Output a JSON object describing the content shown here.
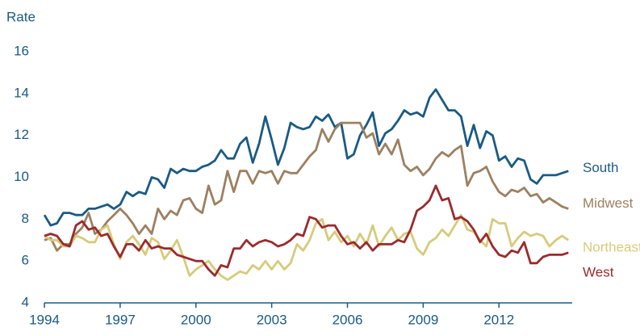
{
  "chart_data": {
    "type": "line",
    "y_label": "Rate",
    "x": [
      1994,
      1994.25,
      1994.5,
      1994.75,
      1995,
      1995.25,
      1995.5,
      1995.75,
      1996,
      1996.25,
      1996.5,
      1996.75,
      1997,
      1997.25,
      1997.5,
      1997.75,
      1998,
      1998.25,
      1998.5,
      1998.75,
      1999,
      1999.25,
      1999.5,
      1999.75,
      2000,
      2000.25,
      2000.5,
      2000.75,
      2001,
      2001.25,
      2001.5,
      2001.75,
      2002,
      2002.25,
      2002.5,
      2002.75,
      2003,
      2003.25,
      2003.5,
      2003.75,
      2004,
      2004.25,
      2004.5,
      2004.75,
      2005,
      2005.25,
      2005.5,
      2005.75,
      2006,
      2006.25,
      2006.5,
      2006.75,
      2007,
      2007.25,
      2007.5,
      2007.75,
      2008,
      2008.25,
      2008.5,
      2008.75,
      2009,
      2009.25,
      2009.5,
      2009.75,
      2010,
      2010.25,
      2010.5,
      2010.75,
      2011,
      2011.25,
      2011.5,
      2011.75,
      2012,
      2012.25,
      2012.5,
      2012.75,
      2013,
      2013.25,
      2013.5,
      2013.75,
      2014,
      2014.25,
      2014.5,
      2014.75
    ],
    "series": [
      {
        "name": "South",
        "color": "#1a5a84",
        "values": [
          8.2,
          7.7,
          7.8,
          8.3,
          8.3,
          8.2,
          8.2,
          8.5,
          8.5,
          8.6,
          8.7,
          8.5,
          8.7,
          9.3,
          9.1,
          9.3,
          9.2,
          10.0,
          9.9,
          9.5,
          10.4,
          10.2,
          10.4,
          10.3,
          10.3,
          10.5,
          10.6,
          10.8,
          11.3,
          10.9,
          10.9,
          11.6,
          11.9,
          10.7,
          11.6,
          12.9,
          11.8,
          10.6,
          11.4,
          12.6,
          12.4,
          12.3,
          12.4,
          12.9,
          12.7,
          13.0,
          12.4,
          12.6,
          10.9,
          11.1,
          12.0,
          12.5,
          13.1,
          11.5,
          12.1,
          12.3,
          12.7,
          13.2,
          13.0,
          13.1,
          12.9,
          13.8,
          14.2,
          13.7,
          13.2,
          13.2,
          12.9,
          11.5,
          12.5,
          11.4,
          12.2,
          12.0,
          10.8,
          11.0,
          10.5,
          10.9,
          10.8,
          9.9,
          9.7,
          10.1,
          10.1,
          10.1,
          10.2,
          10.3
        ]
      },
      {
        "name": "Midwest",
        "color": "#9c8060",
        "values": [
          7.0,
          7.1,
          6.5,
          6.8,
          6.8,
          7.3,
          7.6,
          8.3,
          7.3,
          7.5,
          7.9,
          8.2,
          8.5,
          8.2,
          7.8,
          7.3,
          7.7,
          7.3,
          8.5,
          8.0,
          8.4,
          8.2,
          8.9,
          9.0,
          8.5,
          8.3,
          9.6,
          8.7,
          8.9,
          10.3,
          9.3,
          10.3,
          10.3,
          9.7,
          10.3,
          10.2,
          10.3,
          9.7,
          10.3,
          10.2,
          10.2,
          10.6,
          11.0,
          11.3,
          12.3,
          11.7,
          12.3,
          12.6,
          12.6,
          12.6,
          12.6,
          11.9,
          12.1,
          11.1,
          11.6,
          11.1,
          11.8,
          10.6,
          10.3,
          10.5,
          10.1,
          10.4,
          10.9,
          11.2,
          11.0,
          11.3,
          11.5,
          9.6,
          10.2,
          10.3,
          10.5,
          9.8,
          9.3,
          9.1,
          9.4,
          9.3,
          9.5,
          9.1,
          9.2,
          8.8,
          9.0,
          8.8,
          8.6,
          8.5
        ]
      },
      {
        "name": "Northeast",
        "color": "#d6cb7a",
        "values": [
          7.2,
          7.0,
          7.0,
          6.7,
          6.7,
          7.2,
          7.1,
          6.9,
          6.9,
          7.5,
          7.7,
          6.8,
          6.1,
          6.9,
          7.2,
          6.8,
          6.3,
          7.1,
          6.9,
          6.1,
          6.5,
          7.0,
          6.2,
          5.3,
          5.6,
          5.8,
          6.0,
          5.6,
          5.3,
          5.1,
          5.3,
          5.5,
          5.4,
          5.8,
          5.6,
          6.0,
          5.6,
          6.0,
          5.6,
          5.9,
          6.8,
          6.5,
          7.0,
          7.8,
          8.0,
          7.0,
          7.4,
          6.9,
          7.2,
          6.7,
          7.3,
          6.8,
          7.7,
          6.7,
          7.2,
          7.6,
          7.0,
          7.3,
          7.4,
          6.6,
          6.3,
          6.9,
          7.1,
          7.5,
          7.2,
          7.7,
          8.2,
          7.5,
          7.4,
          7.0,
          6.7,
          8.0,
          7.8,
          7.8,
          6.7,
          7.1,
          7.4,
          7.2,
          7.3,
          7.2,
          6.7,
          7.0,
          7.2,
          7.0
        ]
      },
      {
        "name": "West",
        "color": "#9b2a2d",
        "values": [
          7.2,
          7.3,
          7.2,
          6.8,
          6.7,
          7.7,
          7.9,
          7.5,
          7.6,
          7.2,
          7.3,
          6.7,
          6.2,
          6.8,
          6.8,
          6.5,
          7.0,
          6.6,
          6.7,
          6.6,
          6.6,
          6.3,
          6.2,
          6.1,
          6.0,
          6.0,
          5.6,
          5.3,
          5.8,
          5.7,
          6.6,
          6.6,
          7.0,
          6.7,
          6.9,
          7.0,
          6.9,
          6.7,
          6.8,
          7.0,
          7.3,
          7.2,
          8.1,
          8.0,
          7.6,
          7.7,
          7.7,
          7.2,
          6.8,
          6.9,
          6.6,
          6.9,
          6.5,
          6.8,
          6.8,
          6.8,
          7.0,
          6.9,
          7.5,
          8.4,
          8.6,
          8.9,
          9.6,
          8.9,
          9.0,
          8.0,
          8.1,
          7.9,
          7.5,
          6.9,
          7.3,
          6.7,
          6.3,
          6.2,
          6.5,
          6.4,
          6.9,
          5.9,
          5.9,
          6.2,
          6.3,
          6.3,
          6.3,
          6.4
        ]
      }
    ],
    "xlim": [
      1994,
      2014.9
    ],
    "xticks": [
      1994,
      1997,
      2000,
      2003,
      2006,
      2009,
      2012
    ],
    "ylim": [
      4,
      16
    ],
    "yticks": [
      4,
      6,
      8,
      10,
      12,
      14,
      16
    ],
    "grid": false
  }
}
